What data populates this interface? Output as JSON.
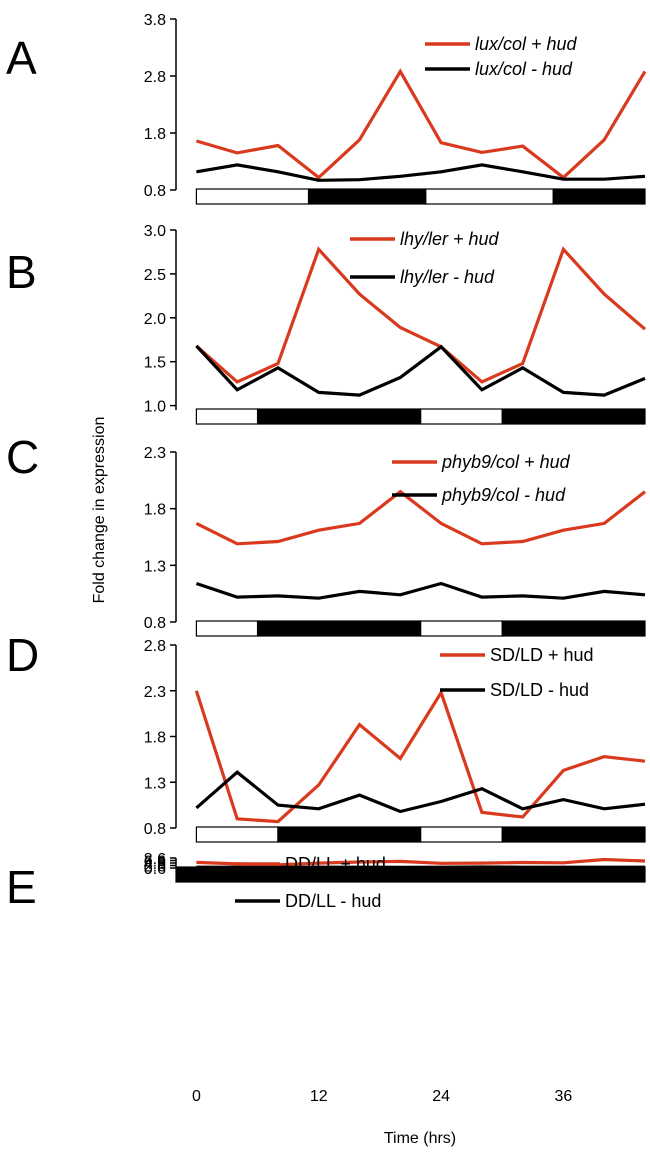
{
  "figure": {
    "ylabel": "Fold change in expression",
    "xlabel": "Time (hrs)",
    "x_ticks": [
      0,
      12,
      24,
      36
    ]
  },
  "colors": {
    "plus_hud": "#d93a1e",
    "minus_hud": "#000000",
    "light_bar": "#ffffff",
    "dark_bar": "#000000"
  },
  "chart_data": [
    {
      "type": "line",
      "panel": "A",
      "x": [
        0,
        4,
        8,
        12,
        16,
        20,
        24,
        28,
        32,
        36,
        40,
        44
      ],
      "xlim": [
        -2,
        44
      ],
      "ylim": [
        0.8,
        3.8
      ],
      "yticks": [
        "0.8",
        "1.8",
        "2.8",
        "3.8"
      ],
      "italic_legend": true,
      "legend_placement": "top-right",
      "photoperiod": [
        [
          "light",
          0,
          11
        ],
        [
          "dark",
          11,
          22.5
        ],
        [
          "light",
          22.5,
          35
        ],
        [
          "dark",
          35,
          46
        ]
      ],
      "series": [
        {
          "name": "lux/col + hud",
          "color": "#d93a1e",
          "values": [
            1.66,
            1.45,
            1.58,
            1.02,
            1.68,
            2.88,
            1.63,
            1.46,
            1.57,
            1.02,
            1.68,
            2.88
          ]
        },
        {
          "name": "lux/col - hud",
          "color": "#000000",
          "values": [
            1.12,
            1.24,
            1.12,
            0.97,
            0.98,
            1.04,
            1.12,
            1.24,
            1.12,
            0.99,
            0.99,
            1.04
          ]
        }
      ]
    },
    {
      "type": "line",
      "panel": "B",
      "x": [
        0,
        4,
        8,
        12,
        16,
        20,
        24,
        28,
        32,
        36,
        40,
        44
      ],
      "xlim": [
        -2,
        44
      ],
      "ylim": [
        0.95,
        3.0
      ],
      "yticks": [
        "1.0",
        "1.5",
        "2.0",
        "2.5",
        "3.0"
      ],
      "italic_legend": true,
      "legend_placement": "top-center",
      "photoperiod": [
        [
          "light",
          0,
          6
        ],
        [
          "dark",
          6,
          22
        ],
        [
          "light",
          22,
          30
        ],
        [
          "dark",
          30,
          46
        ]
      ],
      "series": [
        {
          "name": "lhy/ler + hud",
          "color": "#d93a1e",
          "values": [
            1.68,
            1.27,
            1.48,
            2.78,
            2.27,
            1.89,
            1.67,
            1.27,
            1.48,
            2.78,
            2.27,
            1.87
          ]
        },
        {
          "name": "lhy/ler - hud",
          "color": "#000000",
          "values": [
            1.68,
            1.18,
            1.43,
            1.15,
            1.12,
            1.32,
            1.67,
            1.18,
            1.43,
            1.15,
            1.12,
            1.31
          ]
        }
      ]
    },
    {
      "type": "line",
      "panel": "C",
      "x": [
        0,
        4,
        8,
        12,
        16,
        20,
        24,
        28,
        32,
        36,
        40,
        44
      ],
      "xlim": [
        -2,
        44
      ],
      "ylim": [
        0.8,
        2.3
      ],
      "yticks": [
        "0.8",
        "1.3",
        "1.8",
        "2.3"
      ],
      "italic_legend": true,
      "legend_placement": "top-right",
      "photoperiod": [
        [
          "light",
          0,
          6
        ],
        [
          "dark",
          6,
          22
        ],
        [
          "light",
          22,
          30
        ],
        [
          "dark",
          30,
          46
        ]
      ],
      "series": [
        {
          "name": "phyb9/col + hud",
          "color": "#d93a1e",
          "values": [
            1.67,
            1.49,
            1.51,
            1.61,
            1.67,
            1.95,
            1.67,
            1.49,
            1.51,
            1.61,
            1.67,
            1.95
          ]
        },
        {
          "name": "phyb9/col - hud",
          "color": "#000000",
          "values": [
            1.14,
            1.02,
            1.03,
            1.01,
            1.07,
            1.04,
            1.14,
            1.02,
            1.03,
            1.01,
            1.07,
            1.04
          ]
        }
      ]
    },
    {
      "type": "line",
      "panel": "D",
      "x": [
        0,
        4,
        8,
        12,
        16,
        20,
        24,
        28,
        32,
        36,
        40,
        44
      ],
      "xlim": [
        -2,
        44
      ],
      "ylim": [
        0.8,
        2.8
      ],
      "yticks": [
        "0.8",
        "1.3",
        "1.8",
        "2.3",
        "2.8"
      ],
      "italic_legend": false,
      "legend_placement": "top-right",
      "photoperiod": [
        [
          "light",
          0,
          8
        ],
        [
          "dark",
          8,
          22
        ],
        [
          "light",
          22,
          30
        ],
        [
          "dark",
          30,
          46
        ]
      ],
      "series": [
        {
          "name": "SD/LD + hud",
          "color": "#d93a1e",
          "values": [
            2.3,
            0.9,
            0.87,
            1.27,
            1.93,
            1.56,
            2.28,
            0.97,
            0.92,
            1.43,
            1.58,
            1.53
          ]
        },
        {
          "name": "SD/LD - hud",
          "color": "#000000",
          "values": [
            1.02,
            1.41,
            1.05,
            1.01,
            1.16,
            0.98,
            1.09,
            1.23,
            1.01,
            1.11,
            1.01,
            1.06
          ]
        }
      ]
    },
    {
      "type": "line",
      "panel": "E",
      "x": [
        0,
        4,
        8,
        12,
        16,
        20,
        24,
        28,
        32,
        36,
        40,
        44
      ],
      "xlim": [
        -2,
        44
      ],
      "ylim": [
        0.6,
        8.6
      ],
      "yticks": [
        "0.6",
        "2.6",
        "4.6",
        "6.6",
        "8.6"
      ],
      "italic_legend": false,
      "legend_placement": "top-left",
      "photoperiod": [
        [
          "dark",
          -2,
          46
        ]
      ],
      "series": [
        {
          "name": "DD/LL + hud",
          "color": "#d93a1e",
          "values": [
            5.05,
            3.85,
            3.2,
            4.5,
            5.4,
            5.85,
            4.35,
            4.5,
            5.0,
            4.8,
            7.4,
            6.2
          ]
        },
        {
          "name": "DD/LL - hud",
          "color": "#000000",
          "values": [
            1.27,
            1.23,
            1.17,
            1.27,
            1.25,
            1.2,
            1.22,
            1.37,
            1.25,
            1.27,
            1.25,
            1.25
          ]
        }
      ]
    }
  ]
}
